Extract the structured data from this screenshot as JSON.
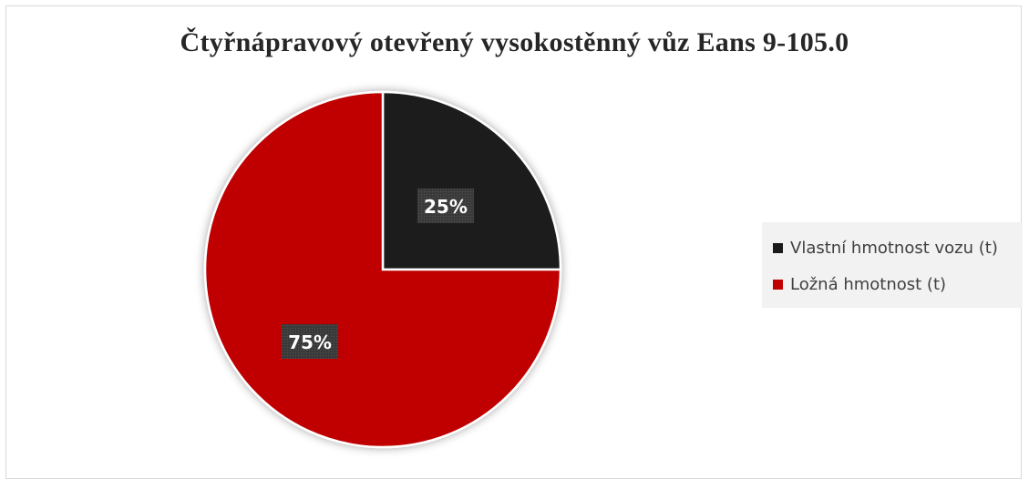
{
  "chart_data": {
    "type": "pie",
    "title": "Čtyřnápravový otevřený vysokostěnný vůz Eans 9-105.0",
    "categories": [
      "Vlastní hmotnost vozu (t)",
      "Ložná hmotnost (t)"
    ],
    "values": [
      25,
      75
    ],
    "data_labels": [
      "25%",
      "75%"
    ],
    "colors": [
      "#1a1a1a",
      "#c00000"
    ],
    "legend_position": "right"
  }
}
